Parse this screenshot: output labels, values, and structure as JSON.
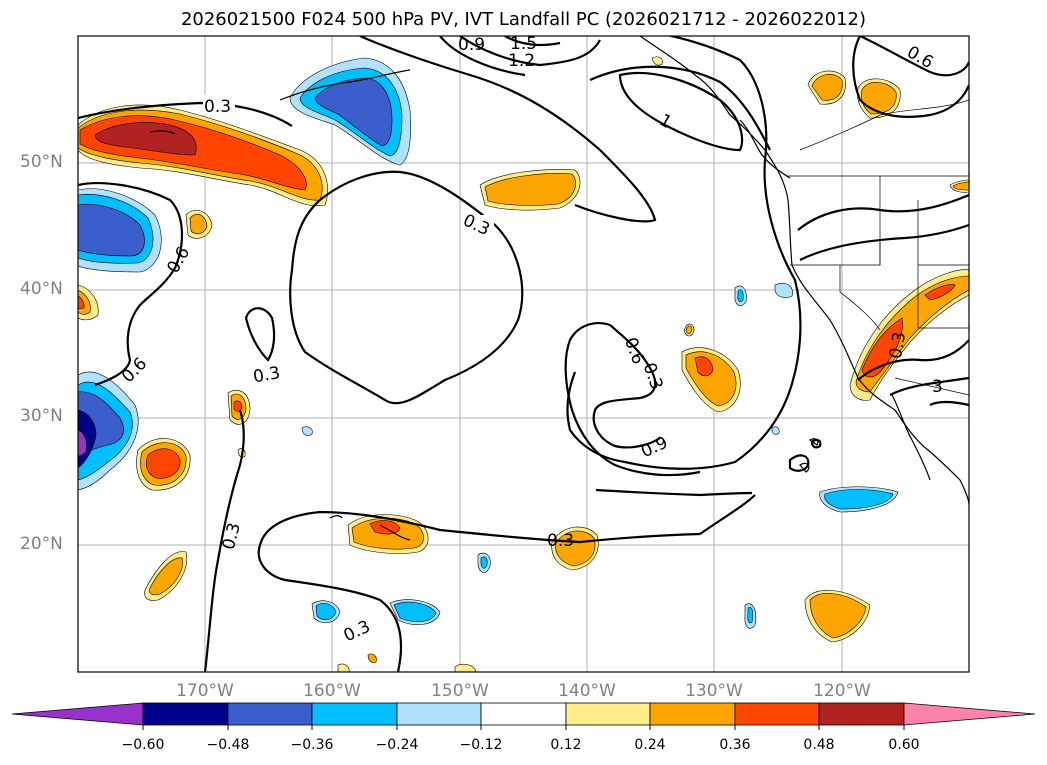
{
  "title": "2026021500 F024 500 hPa PV, IVT Landfall PC (2026021712 - 2026022012)",
  "lat_labels": [
    "50°N",
    "40°N",
    "30°N",
    "20°N"
  ],
  "lon_labels": [
    "170°W",
    "160°W",
    "150°W",
    "140°W",
    "130°W",
    "120°W"
  ],
  "contour_labels": [
    "0.3",
    "0.6",
    "0.9",
    "1.2",
    "1.5",
    "1",
    "3"
  ],
  "colorbar": {
    "ticks": [
      "−0.60",
      "−0.48",
      "−0.36",
      "−0.24",
      "−0.12",
      "0.12",
      "0.24",
      "0.36",
      "0.48",
      "0.60"
    ],
    "colors": [
      "#9932cc",
      "#00008b",
      "#3a5fcd",
      "#00bfff",
      "#b0e2ff",
      "#ffffff",
      "#ffec8b",
      "#ffa500",
      "#ff4500",
      "#b22222",
      "#ff82ab"
    ],
    "extend": "both"
  },
  "map": {
    "projection": "cylindrical",
    "lon_range": [
      "180°W",
      "110°W"
    ],
    "lat_range": [
      "10°N",
      "60°N"
    ],
    "gridlines": true,
    "fields": [
      "500 hPa PV (contours)",
      "IVT Landfall PC (filled)"
    ]
  }
}
